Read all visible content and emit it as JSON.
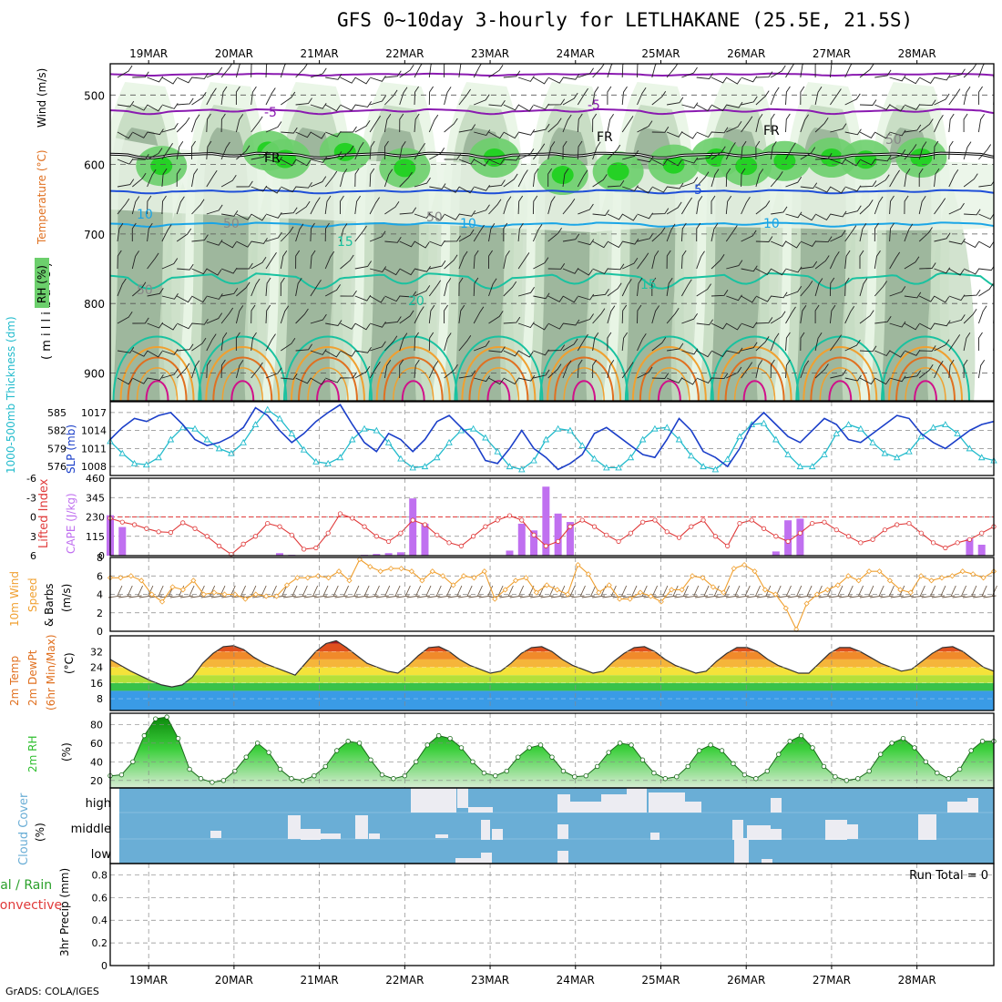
{
  "title": "GFS 0~10day 3-hourly for LETLHAKANE (25.5E, 21.5S)",
  "footer": "GrADS: COLA/IGES",
  "dates": [
    "19MAR",
    "20MAR",
    "21MAR",
    "22MAR",
    "23MAR",
    "24MAR",
    "25MAR",
    "26MAR",
    "27MAR",
    "28MAR"
  ],
  "colors": {
    "rh_light": "#e9f5e6",
    "rh_mid": "#c7dcc3",
    "rh_dark": "#9cb49b",
    "rh_green": "#6ccf6c",
    "rh_bright": "#25d125",
    "temp_purple": "#8a1ab0",
    "temp_blue": "#1f4fd8",
    "temp_light": "#1aa5e6",
    "temp_teal": "#19c2a0",
    "temp_orange": "#f0a030",
    "temp_dark_orange": "#e07020",
    "temp_magenta": "#d0108a",
    "thickness": "#22bbcc",
    "slp": "#1b3fc9",
    "lifted": "#e03a3a",
    "cape": "#c070f0",
    "wind_speed": "#f0a030",
    "barb": "#6e5a48",
    "cloud": "#6aaed6",
    "rh2m": "#2fbf2f"
  },
  "chart_data": [
    {
      "type": "contour",
      "name": "upper",
      "ylabel": [
        "RH (%)",
        "Temperature (°C)",
        "Wind (m/s)",
        "( m i l l i b a r s )"
      ],
      "y_ticks": [
        500,
        600,
        700,
        800,
        900
      ],
      "ylim": [
        940,
        455
      ],
      "contour_labels": [
        "-5",
        "-5",
        "FR",
        "FR",
        "FR",
        "10",
        "50",
        "50",
        "10",
        "5",
        "10",
        "15",
        "50",
        "20",
        "15",
        "50"
      ],
      "temperature_levels": [
        -5,
        0,
        5,
        10,
        15,
        20,
        25,
        30,
        35
      ]
    },
    {
      "type": "line",
      "name": "thickness_slp",
      "ylabel_left": "1000-500mb Thickness (dm)",
      "ylabel_right": "SLP (mb)",
      "y_ticks_left": [
        585,
        582,
        579,
        576
      ],
      "y_ticks_right": [
        1017,
        1014,
        1011,
        1008
      ],
      "ylim_left": [
        574.5,
        586.8
      ],
      "ylim_right": [
        1006.5,
        1018.8
      ],
      "series": [
        {
          "name": "1000-500mb Thickness",
          "axis": "left",
          "values": [
            580.2,
            578.2,
            576.5,
            576.3,
            577.5,
            580.5,
            582.5,
            582.3,
            580.5,
            579.0,
            578.2,
            580.0,
            583.0,
            585.5,
            584.0,
            581.5,
            578.8,
            576.8,
            576.5,
            577.5,
            580.5,
            582.3,
            582.0,
            580.0,
            577.3,
            575.8,
            576.0,
            577.5,
            580.0,
            582.0,
            582.3,
            580.8,
            578.5,
            576.0,
            575.5,
            577.0,
            580.5,
            582.3,
            582.0,
            579.5,
            577.3,
            575.8,
            575.8,
            577.5,
            580.5,
            582.3,
            582.5,
            580.5,
            577.8,
            576.0,
            575.5,
            577.2,
            581.0,
            583.0,
            583.2,
            580.5,
            578.0,
            576.0,
            576.0,
            578.0,
            581.5,
            583.0,
            582.3,
            580.0,
            578.2,
            577.5,
            578.5,
            581.0,
            582.5,
            583.0,
            581.5,
            579.0,
            577.5,
            577.0
          ]
        },
        {
          "name": "SLP",
          "axis": "right",
          "values": [
            1012.5,
            1014.5,
            1016.0,
            1015.5,
            1016.5,
            1017.0,
            1015.0,
            1012.5,
            1011.5,
            1012.0,
            1013.0,
            1014.5,
            1017.8,
            1016.5,
            1014.0,
            1012.0,
            1013.5,
            1015.5,
            1017.0,
            1018.3,
            1015.0,
            1012.0,
            1010.5,
            1013.5,
            1012.5,
            1010.5,
            1012.5,
            1015.5,
            1016.5,
            1014.5,
            1012.5,
            1009.0,
            1008.5,
            1011.0,
            1014.0,
            1011.0,
            1009.5,
            1007.5,
            1008.5,
            1010.0,
            1013.5,
            1014.5,
            1013.0,
            1011.5,
            1010.0,
            1009.5,
            1012.5,
            1016.0,
            1014.0,
            1010.5,
            1009.5,
            1008.0,
            1011.0,
            1015.0,
            1017.0,
            1015.0,
            1013.0,
            1012.0,
            1014.0,
            1016.0,
            1015.0,
            1012.5,
            1012.0,
            1013.5,
            1015.0,
            1016.5,
            1016.0,
            1013.5,
            1012.0,
            1011.0,
            1012.5,
            1014.0,
            1015.0,
            1015.5
          ]
        }
      ]
    },
    {
      "type": "bar",
      "name": "lifted_cape",
      "ylabel_left": "Lifted Index",
      "ylabel_right": "CAPE (J/kg)",
      "y_ticks_left": [
        -6,
        -3,
        0,
        3,
        6
      ],
      "y_ticks_right": [
        460,
        345,
        230,
        115,
        0
      ],
      "ylim_right": [
        0,
        460
      ],
      "cape": [
        240,
        170,
        0,
        0,
        0,
        0,
        0,
        0,
        0,
        0,
        0,
        0,
        0,
        0,
        15,
        5,
        0,
        0,
        0,
        0,
        0,
        5,
        10,
        15,
        20,
        340,
        190,
        0,
        0,
        0,
        0,
        0,
        0,
        30,
        190,
        150,
        410,
        250,
        200,
        0,
        0,
        0,
        0,
        0,
        0,
        0,
        0,
        0,
        0,
        0,
        0,
        0,
        0,
        0,
        0,
        25,
        210,
        220,
        0,
        0,
        0,
        0,
        0,
        0,
        0,
        0,
        0,
        0,
        0,
        0,
        0,
        100,
        65,
        0
      ],
      "lifted_index": [
        0.2,
        0.8,
        1.2,
        1.8,
        2.3,
        2.4,
        0.9,
        1.8,
        3.0,
        4.5,
        5.8,
        4.2,
        3.0,
        1.0,
        1.5,
        2.8,
        5.0,
        4.8,
        2.5,
        -0.5,
        0.2,
        1.5,
        3.0,
        3.8,
        2.5,
        0.5,
        1.2,
        2.8,
        4.0,
        4.5,
        3.0,
        1.5,
        0.5,
        -0.2,
        0.5,
        2.8,
        4.5,
        3.8,
        1.5,
        0.5,
        1.5,
        2.8,
        3.8,
        2.5,
        0.8,
        0.5,
        2.3,
        3.2,
        1.5,
        0.5,
        3.0,
        4.5,
        1.0,
        0.5,
        1.8,
        3.0,
        3.8,
        2.5,
        1.0,
        0.8,
        2.0,
        3.0,
        4.0,
        3.5,
        2.0,
        1.2,
        1.0,
        2.5,
        4.0,
        4.8,
        4.0,
        3.5,
        2.5,
        1.5
      ]
    },
    {
      "type": "line",
      "name": "wind10m",
      "ylabel": [
        "10m Wind",
        "Speed",
        "& Barbs",
        "(m/s)"
      ],
      "y_ticks": [
        8,
        6,
        4,
        2,
        0
      ],
      "ylim": [
        0,
        8
      ],
      "values": [
        5.8,
        5.8,
        6.0,
        5.5,
        4.0,
        3.2,
        4.8,
        4.5,
        5.5,
        4.0,
        4.2,
        4.0,
        4.0,
        3.5,
        4.0,
        3.8,
        3.8,
        5.0,
        5.8,
        5.8,
        6.0,
        5.8,
        6.5,
        5.5,
        7.8,
        7.0,
        6.5,
        6.8,
        6.8,
        6.5,
        5.5,
        6.5,
        6.0,
        5.0,
        6.0,
        5.8,
        6.5,
        3.5,
        4.5,
        5.5,
        5.8,
        4.2,
        5.0,
        4.5,
        4.0,
        7.2,
        6.2,
        4.2,
        5.0,
        3.5,
        3.5,
        4.2,
        3.8,
        3.2,
        4.5,
        4.5,
        6.0,
        5.8,
        4.8,
        4.2,
        6.8,
        7.2,
        6.5,
        4.5,
        4.0,
        2.5,
        0.2,
        3.0,
        4.0,
        4.5,
        5.0,
        6.0,
        5.5,
        6.5,
        6.5,
        5.5,
        4.5,
        4.2,
        6.0,
        5.5,
        5.8,
        6.0,
        6.5,
        6.2,
        5.8,
        6.5
      ]
    },
    {
      "type": "area",
      "name": "temp2m",
      "ylabel": [
        "2m Temp",
        "2m DewPt",
        "(6hr Min/Max)",
        "(°C)"
      ],
      "y_ticks": [
        32,
        24,
        16,
        8
      ],
      "ylim": [
        2,
        40
      ],
      "temperature": [
        28,
        25,
        22,
        19.5,
        17,
        15,
        14,
        15,
        19,
        26,
        31,
        34.5,
        35,
        33,
        29,
        26,
        24,
        22,
        20,
        26,
        32,
        36,
        37.5,
        34,
        30,
        26,
        24,
        22,
        21,
        25,
        30,
        34,
        34.5,
        32,
        28,
        25,
        23,
        21,
        22,
        26,
        31,
        34,
        34.5,
        32,
        28,
        25,
        23,
        21,
        22,
        27,
        31,
        34,
        34.5,
        32,
        28,
        25,
        23,
        21,
        22,
        27,
        31,
        34,
        34,
        32,
        28,
        25,
        23,
        21,
        21,
        26,
        31,
        34,
        34,
        32,
        29,
        26,
        24,
        22,
        23,
        27,
        31,
        34,
        34.5,
        32,
        28,
        24,
        22
      ]
    },
    {
      "type": "area",
      "name": "rh2m",
      "ylabel": [
        "2m RH",
        "(%)"
      ],
      "y_ticks": [
        80,
        60,
        40,
        20
      ],
      "ylim": [
        12,
        92
      ],
      "values": [
        25,
        26,
        40,
        68,
        86,
        88,
        65,
        32,
        22,
        18,
        20,
        30,
        45,
        60,
        50,
        32,
        22,
        20,
        25,
        35,
        52,
        62,
        60,
        42,
        26,
        22,
        25,
        40,
        58,
        68,
        65,
        55,
        40,
        28,
        25,
        30,
        45,
        55,
        58,
        45,
        30,
        24,
        25,
        35,
        50,
        60,
        58,
        42,
        28,
        22,
        24,
        35,
        52,
        58,
        52,
        38,
        26,
        22,
        30,
        48,
        62,
        68,
        55,
        35,
        24,
        20,
        22,
        30,
        48,
        60,
        65,
        55,
        40,
        28,
        22,
        32,
        52,
        62,
        62
      ]
    },
    {
      "type": "heatmap",
      "name": "cloud",
      "ylabel": [
        "Cloud Cover",
        "(%)"
      ],
      "levels": [
        "high",
        "middle",
        "low"
      ]
    },
    {
      "type": "line",
      "name": "precip",
      "ylabel": [
        "Total / Rain",
        "Convective",
        "3hr Precip (mm)"
      ],
      "y_ticks": [
        "0.8",
        "0.6",
        "0.4",
        "0.2",
        "0"
      ],
      "ylim": [
        0,
        0.9
      ],
      "values": [],
      "annotation": "Run Total = 0"
    }
  ]
}
